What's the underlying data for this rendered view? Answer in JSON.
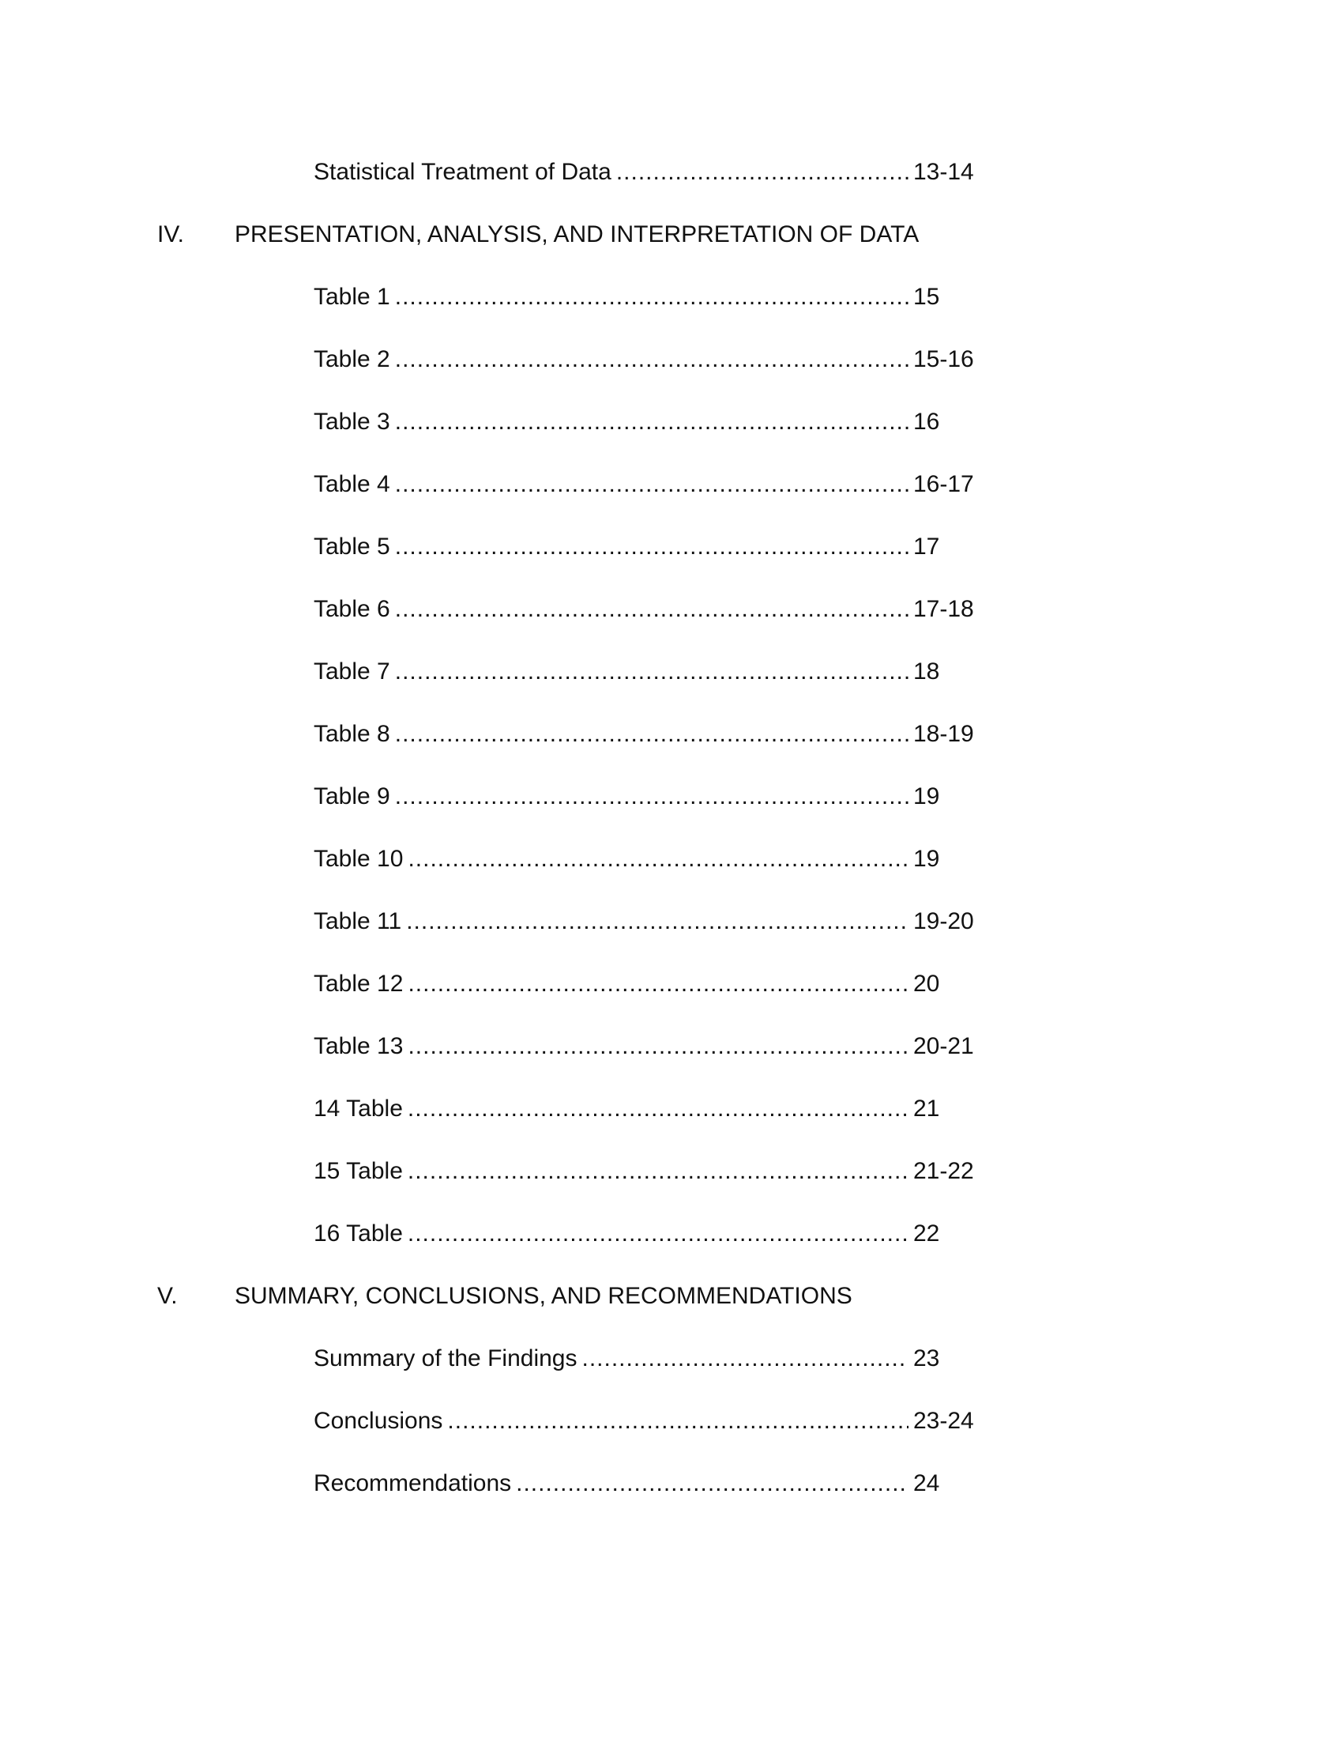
{
  "entries": [
    {
      "type": "entry",
      "label": "Statistical Treatment of Data",
      "page": "13-14"
    },
    {
      "type": "heading",
      "number": "IV.",
      "title": "PRESENTATION, ANALYSIS, AND INTERPRETATION OF DATA"
    },
    {
      "type": "entry",
      "label": "Table 1",
      "page": "15"
    },
    {
      "type": "entry",
      "label": "Table 2",
      "page": "15-16"
    },
    {
      "type": "entry",
      "label": "Table 3",
      "page": "16"
    },
    {
      "type": "entry",
      "label": "Table 4",
      "page": "16-17"
    },
    {
      "type": "entry",
      "label": "Table 5",
      "page": "17"
    },
    {
      "type": "entry",
      "label": "Table 6",
      "page": "17-18"
    },
    {
      "type": "entry",
      "label": "Table 7",
      "page": "18"
    },
    {
      "type": "entry",
      "label": "Table 8",
      "page": "18-19"
    },
    {
      "type": "entry",
      "label": "Table 9",
      "page": "19"
    },
    {
      "type": "entry",
      "label": "Table 10",
      "page": "19"
    },
    {
      "type": "entry",
      "label": "Table 11",
      "page": "19-20"
    },
    {
      "type": "entry",
      "label": "Table 12",
      "page": "20"
    },
    {
      "type": "entry",
      "label": "Table 13",
      "page": "20-21"
    },
    {
      "type": "entry",
      "label": "14 Table",
      "page": "21"
    },
    {
      "type": "entry",
      "label": "15 Table",
      "page": "21-22"
    },
    {
      "type": "entry",
      "label": "16 Table",
      "page": "22"
    },
    {
      "type": "heading",
      "number": "V.",
      "title": "SUMMARY, CONCLUSIONS, AND RECOMMENDATIONS"
    },
    {
      "type": "entry",
      "label": "Summary of the Findings",
      "page": "23"
    },
    {
      "type": "entry",
      "label": "Conclusions",
      "page": "23-24"
    },
    {
      "type": "entry",
      "label": "Recommendations",
      "page": "24"
    }
  ]
}
